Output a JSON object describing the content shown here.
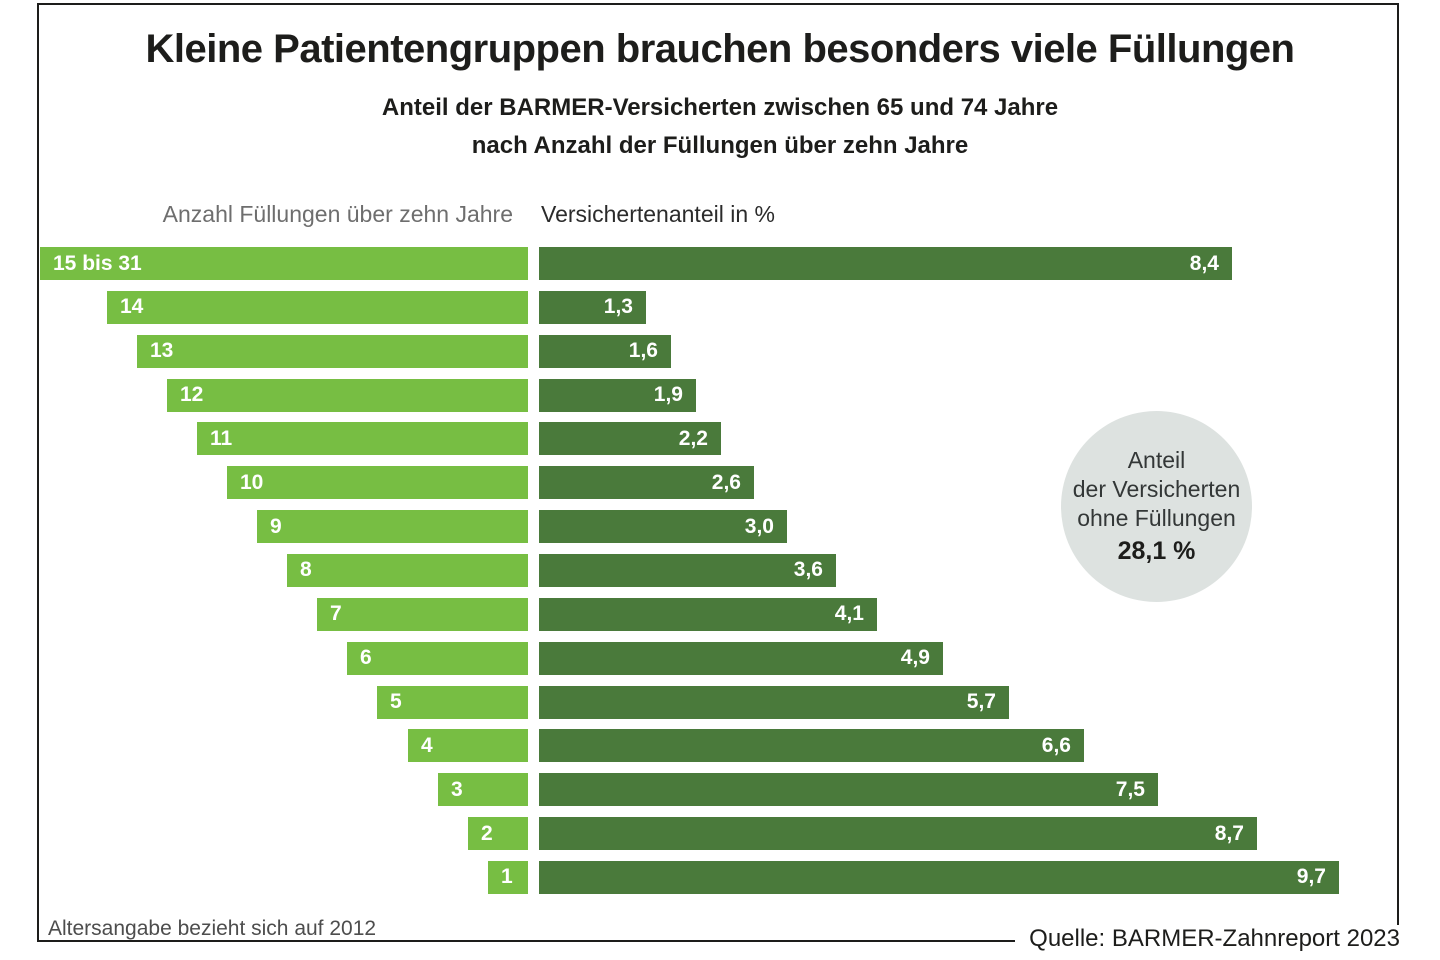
{
  "header": {
    "title": "Kleine Patientengruppen brauchen besonders viele Füllungen",
    "subtitle_line1": "Anteil der BARMER-Versicherten zwischen 65 und 74 Jahre",
    "subtitle_line2": "nach Anzahl der Füllungen über zehn Jahre"
  },
  "columns": {
    "left_header": "Anzahl Füllungen über zehn Jahre",
    "right_header": "Versichertenanteil in %"
  },
  "annotation_circle": {
    "line1": "Anteil",
    "line2": "der Versicherten",
    "line3": "ohne Füllungen",
    "value": "28,1 %"
  },
  "footnote": "Altersangabe bezieht sich auf 2012",
  "source": "Quelle: BARMER-Zahnreport 2023",
  "colors": {
    "light_green": "#77BE43",
    "dark_green": "#4A7A3B",
    "circle_gray": "#DDE2E0"
  },
  "chart_data": {
    "type": "bar",
    "orientation": "horizontal",
    "title": "Kleine Patientengruppen brauchen besonders viele Füllungen",
    "subtitle": "Anteil der BARMER-Versicherten zwischen 65 und 74 Jahre nach Anzahl der Füllungen über zehn Jahre",
    "left_axis_label": "Anzahl Füllungen über zehn Jahre",
    "right_axis_label": "Versichertenanteil in %",
    "categories": [
      "15 bis 31",
      "14",
      "13",
      "12",
      "11",
      "10",
      "9",
      "8",
      "7",
      "6",
      "5",
      "4",
      "3",
      "2",
      "1"
    ],
    "category_units": [
      16,
      14,
      13,
      12,
      11,
      10,
      9,
      8,
      7,
      6,
      5,
      4,
      3,
      2,
      1
    ],
    "values": [
      8.4,
      1.3,
      1.6,
      1.9,
      2.2,
      2.6,
      3.0,
      3.6,
      4.1,
      4.9,
      5.7,
      6.6,
      7.5,
      8.7,
      9.7
    ],
    "value_labels": [
      "8,4",
      "1,3",
      "1,6",
      "1,9",
      "2,2",
      "2,6",
      "3,0",
      "3,6",
      "4,1",
      "4,9",
      "5,7",
      "6,6",
      "7,5",
      "8,7",
      "9,7"
    ],
    "annotation": "Anteil der Versicherten ohne Füllungen 28,1 %",
    "no_fillings_share_percent": 28.1,
    "xlim": [
      0,
      10
    ],
    "grid": false,
    "legend": false
  }
}
